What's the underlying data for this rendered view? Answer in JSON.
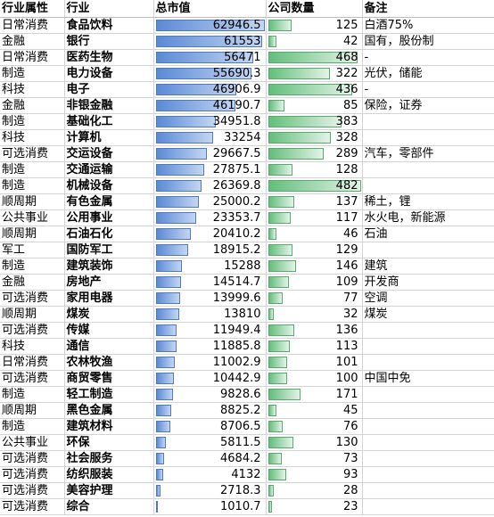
{
  "headers": {
    "attr": "行业属性",
    "industry": "行业",
    "market_cap": "总市值",
    "company_count": "公司数量",
    "note": "备注"
  },
  "colors": {
    "cap_bar": "#5a8ad6",
    "count_bar": "#63be7b",
    "gridline": "#d4d4d4"
  },
  "rows": [
    {
      "attr": "日常消费",
      "industry": "食品饮料",
      "market_cap": "62946.5",
      "count": "125",
      "note": "白酒75%"
    },
    {
      "attr": "金融",
      "industry": "银行",
      "market_cap": "61553",
      "count": "42",
      "note": "国有，股份制"
    },
    {
      "attr": "日常消费",
      "industry": "医药生物",
      "market_cap": "56471",
      "count": "468",
      "note": "-"
    },
    {
      "attr": "制造",
      "industry": "电力设备",
      "market_cap": "55690.3",
      "count": "322",
      "note": "光伏，储能"
    },
    {
      "attr": "科技",
      "industry": "电子",
      "market_cap": "46906.9",
      "count": "436",
      "note": "-"
    },
    {
      "attr": "金融",
      "industry": "非银金融",
      "market_cap": "46190.7",
      "count": "85",
      "note": "保险，证券"
    },
    {
      "attr": "制造",
      "industry": "基础化工",
      "market_cap": "34951.8",
      "count": "383",
      "note": ""
    },
    {
      "attr": "科技",
      "industry": "计算机",
      "market_cap": "33254",
      "count": "328",
      "note": ""
    },
    {
      "attr": "可选消费",
      "industry": "交运设备",
      "market_cap": "29667.5",
      "count": "289",
      "note": "汽车，零部件"
    },
    {
      "attr": "制造",
      "industry": "交通运输",
      "market_cap": "27875.1",
      "count": "128",
      "note": ""
    },
    {
      "attr": "制造",
      "industry": "机械设备",
      "market_cap": "26369.8",
      "count": "482",
      "note": ""
    },
    {
      "attr": "顺周期",
      "industry": "有色金属",
      "market_cap": "25000.2",
      "count": "137",
      "note": "稀土，锂"
    },
    {
      "attr": "公共事业",
      "industry": "公用事业",
      "market_cap": "23353.7",
      "count": "117",
      "note": "水火电，新能源"
    },
    {
      "attr": "顺周期",
      "industry": "石油石化",
      "market_cap": "20410.2",
      "count": "46",
      "note": "石油"
    },
    {
      "attr": "军工",
      "industry": "国防军工",
      "market_cap": "18915.2",
      "count": "129",
      "note": ""
    },
    {
      "attr": "制造",
      "industry": "建筑装饰",
      "market_cap": "15288",
      "count": "146",
      "note": "建筑"
    },
    {
      "attr": "金融",
      "industry": "房地产",
      "market_cap": "14514.7",
      "count": "109",
      "note": "开发商"
    },
    {
      "attr": "可选消费",
      "industry": "家用电器",
      "market_cap": "13999.6",
      "count": "77",
      "note": "空调"
    },
    {
      "attr": "顺周期",
      "industry": "煤炭",
      "market_cap": "13810",
      "count": "32",
      "note": "煤炭"
    },
    {
      "attr": "可选消费",
      "industry": "传媒",
      "market_cap": "11949.4",
      "count": "136",
      "note": ""
    },
    {
      "attr": "科技",
      "industry": "通信",
      "market_cap": "11885.8",
      "count": "113",
      "note": ""
    },
    {
      "attr": "日常消费",
      "industry": "农林牧渔",
      "market_cap": "11002.9",
      "count": "101",
      "note": ""
    },
    {
      "attr": "可选消费",
      "industry": "商贸零售",
      "market_cap": "10442.9",
      "count": "100",
      "note": "中国中免"
    },
    {
      "attr": "制造",
      "industry": "轻工制造",
      "market_cap": "9828.6",
      "count": "171",
      "note": ""
    },
    {
      "attr": "顺周期",
      "industry": "黑色金属",
      "market_cap": "8825.2",
      "count": "45",
      "note": ""
    },
    {
      "attr": "制造",
      "industry": "建筑材料",
      "market_cap": "8706.5",
      "count": "76",
      "note": ""
    },
    {
      "attr": "公共事业",
      "industry": "环保",
      "market_cap": "5811.5",
      "count": "130",
      "note": ""
    },
    {
      "attr": "可选消费",
      "industry": "社会服务",
      "market_cap": "4684.2",
      "count": "73",
      "note": ""
    },
    {
      "attr": "可选消费",
      "industry": "纺织服装",
      "market_cap": "4132",
      "count": "93",
      "note": ""
    },
    {
      "attr": "可选消费",
      "industry": "美容护理",
      "market_cap": "2718.3",
      "count": "28",
      "note": ""
    },
    {
      "attr": "可选消费",
      "industry": "综合",
      "market_cap": "1010.7",
      "count": "23",
      "note": ""
    }
  ]
}
